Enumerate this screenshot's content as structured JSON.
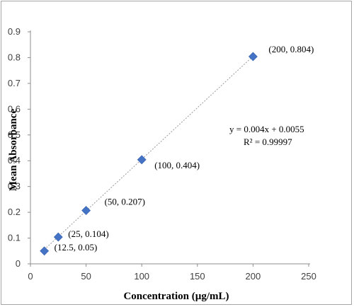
{
  "chart_data": {
    "type": "scatter",
    "x": [
      12.5,
      25,
      50,
      100,
      200
    ],
    "y": [
      0.05,
      0.104,
      0.207,
      0.404,
      0.804
    ],
    "point_labels": [
      "(12.5,  0.05)",
      "(25,  0.104)",
      "(50,  0.207)",
      "(100,  0.404)",
      "(200,  0.804)"
    ],
    "xlabel": "Concentration  (µg/mL)",
    "ylabel": "Mean Absorbance",
    "xlim": [
      0,
      250
    ],
    "ylim": [
      0,
      0.9
    ],
    "xticks": [
      "0",
      "50",
      "100",
      "150",
      "200",
      "250"
    ],
    "yticks": [
      "0",
      "0.1",
      "0.2",
      "0.3",
      "0.4",
      "0.5",
      "0.6",
      "0.7",
      "0.8",
      "0.9"
    ],
    "trendline": {
      "slope": 0.004,
      "intercept": 0.0055,
      "style": "dotted"
    },
    "equation": "y = 0.004x  + 0.0055",
    "r_squared": "R² = 0.99997",
    "marker_color": "#4472c4",
    "marker_shape": "diamond",
    "grid": false,
    "legend": "none"
  }
}
